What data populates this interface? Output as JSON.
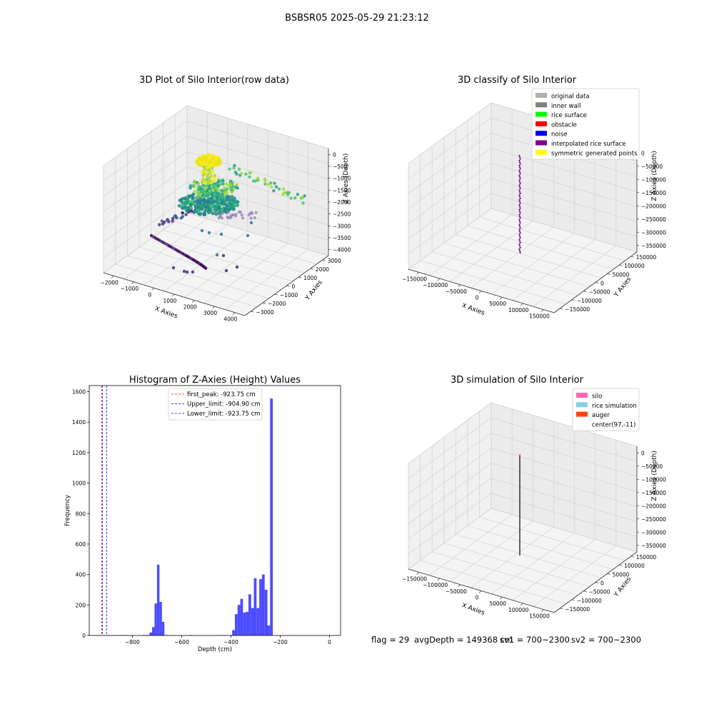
{
  "figure_title": "BSBSR05 2025-05-29 21:23:12",
  "footer": {
    "flag": "flag = 29",
    "avg_depth": "avgDepth = 149368 cm",
    "sv1": "sv1 = 700~2300",
    "sv2": "sv2 = 700~2300"
  },
  "chart_data": [
    {
      "type": "scatter",
      "projection": "3d",
      "title": "3D Plot of Silo Interior(row data)",
      "xlabel": "X Axies",
      "ylabel": "Y Axies",
      "zlabel": "Z Axies (Depth)",
      "x_ticks": [
        "−2000",
        "−1000",
        "0",
        "1000",
        "2000",
        "3000",
        "4000"
      ],
      "y_ticks": [
        "−3000",
        "−2000",
        "−1000",
        "0",
        "1000",
        "2000",
        "3000"
      ],
      "z_ticks": [
        "0",
        "−500",
        "−1000",
        "−1500",
        "−2000",
        "−2500",
        "−3000",
        "−3500",
        "−4000"
      ],
      "colormap": "viridis",
      "grid": true
    },
    {
      "type": "scatter",
      "projection": "3d",
      "title": "3D classify of Silo Interior",
      "xlabel": "X Axies",
      "ylabel": "Y Axies",
      "zlabel": "Z Axies (Depth)",
      "x_ticks": [
        "−150000",
        "−100000",
        "−50000",
        "0",
        "50000",
        "100000",
        "150000"
      ],
      "y_ticks": [
        "−150000",
        "−100000",
        "−50000",
        "0",
        "50000",
        "100000",
        "150000"
      ],
      "z_ticks": [
        "0",
        "−50000",
        "−100000",
        "−150000",
        "−200000",
        "−250000",
        "−300000",
        "−350000"
      ],
      "legend_position": "top-right",
      "legend": [
        {
          "name": "original data",
          "color": "#b0b0b0"
        },
        {
          "name": "inner wall",
          "color": "#808080"
        },
        {
          "name": "rice surface",
          "color": "#00ff00"
        },
        {
          "name": "obstacle",
          "color": "#ff0000"
        },
        {
          "name": "noise",
          "color": "#0000ff"
        },
        {
          "name": "interpolated rice surface",
          "color": "#800080"
        },
        {
          "name": "symmetric generated points",
          "color": "#ffff00"
        }
      ],
      "grid": true
    },
    {
      "type": "bar",
      "title": "Histogram of Z-Axies (Height) Values",
      "xlabel": "Depth (cm)",
      "ylabel": "Frequency",
      "xlim": [
        -975,
        45
      ],
      "ylim": [
        0,
        1640
      ],
      "x_ticks": [
        -800,
        -600,
        -400,
        -200,
        0
      ],
      "y_ticks": [
        0,
        200,
        400,
        600,
        800,
        1000,
        1200,
        1400,
        1600
      ],
      "bar_color": "#4c4cff",
      "bins": [
        {
          "x0": -940,
          "x1": -925,
          "count": 2
        },
        {
          "x0": -920,
          "x1": -880,
          "count": 2
        },
        {
          "x0": -850,
          "x1": -803,
          "count": 2
        },
        {
          "x0": -760,
          "x1": -730,
          "count": 3
        },
        {
          "x0": -730,
          "x1": -720,
          "count": 20
        },
        {
          "x0": -720,
          "x1": -710,
          "count": 55
        },
        {
          "x0": -710,
          "x1": -700,
          "count": 210
        },
        {
          "x0": -700,
          "x1": -690,
          "count": 465
        },
        {
          "x0": -690,
          "x1": -680,
          "count": 220
        },
        {
          "x0": -680,
          "x1": -670,
          "count": 90
        },
        {
          "x0": -670,
          "x1": -660,
          "count": 3
        },
        {
          "x0": -570,
          "x1": -558,
          "count": 3
        },
        {
          "x0": -450,
          "x1": -395,
          "count": 2
        },
        {
          "x0": -395,
          "x1": -384,
          "count": 35
        },
        {
          "x0": -384,
          "x1": -373,
          "count": 140
        },
        {
          "x0": -373,
          "x1": -362,
          "count": 200
        },
        {
          "x0": -362,
          "x1": -351,
          "count": 240
        },
        {
          "x0": -351,
          "x1": -340,
          "count": 150
        },
        {
          "x0": -340,
          "x1": -329,
          "count": 155
        },
        {
          "x0": -329,
          "x1": -318,
          "count": 270
        },
        {
          "x0": -318,
          "x1": -307,
          "count": 180
        },
        {
          "x0": -307,
          "x1": -296,
          "count": 375
        },
        {
          "x0": -296,
          "x1": -285,
          "count": 180
        },
        {
          "x0": -285,
          "x1": -274,
          "count": 370
        },
        {
          "x0": -274,
          "x1": -263,
          "count": 400
        },
        {
          "x0": -263,
          "x1": -252,
          "count": 300
        },
        {
          "x0": -252,
          "x1": -241,
          "count": 65
        },
        {
          "x0": -241,
          "x1": -230,
          "count": 1555
        }
      ],
      "lines": [
        {
          "name": "first_peak: -923.75 cm",
          "x": -923.75,
          "color": "#ff0000"
        },
        {
          "name": "Upper_limit: -904.90 cm",
          "x": -904.9,
          "color": "#0000cc"
        },
        {
          "name": "Lower_limit: -923.75 cm",
          "x": -923.75,
          "color": "#0000cc"
        }
      ],
      "legend_position": "top-center"
    },
    {
      "type": "scatter",
      "projection": "3d",
      "title": "3D simulation of Silo Interior",
      "xlabel": "X Axies",
      "ylabel": "Y Axies",
      "zlabel": "Z Axies (Depth)",
      "x_ticks": [
        "−150000",
        "−100000",
        "−50000",
        "0",
        "50000",
        "100000",
        "150000"
      ],
      "y_ticks": [
        "−150000",
        "−100000",
        "−50000",
        "0",
        "50000",
        "100000",
        "150000"
      ],
      "z_ticks": [
        "0",
        "−50000",
        "−100000",
        "−150000",
        "−200000",
        "−250000",
        "−300000",
        "−350000"
      ],
      "legend_position": "top-right",
      "legend": [
        {
          "name": "silo",
          "color": "#ff69b4"
        },
        {
          "name": "rice simulation",
          "color": "#87ceeb"
        },
        {
          "name": "auger",
          "color": "#ff4500"
        },
        {
          "name": "center(97,-11)",
          "color": "#ffffff"
        }
      ],
      "grid": true
    }
  ]
}
